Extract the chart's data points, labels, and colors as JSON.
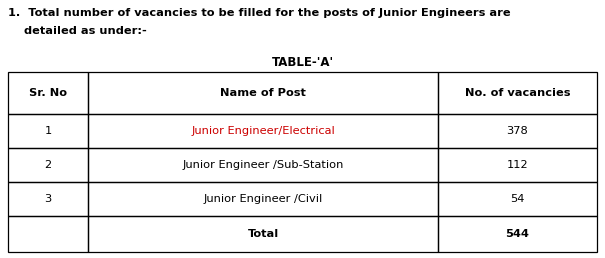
{
  "title_line1": "1.  Total number of vacancies to be filled for the posts of Junior Engineers are",
  "title_line2": "    detailed as under:-",
  "table_title": "TABLE-‘A’",
  "headers": [
    "Sr. No",
    "Name of Post",
    "No. of vacancies"
  ],
  "rows": [
    [
      "1",
      "Junior Engineer/Electrical",
      "378"
    ],
    [
      "2",
      "Junior Engineer /Sub-Station",
      "112"
    ],
    [
      "3",
      "Junior Engineer /Civil",
      "54"
    ],
    [
      "",
      "Total",
      "544"
    ]
  ],
  "col2_color_rows": [
    "#cc0000",
    "#000000",
    "#000000",
    "#000000"
  ],
  "bg_color": "#ffffff",
  "fig_width": 6.05,
  "fig_height": 2.58,
  "dpi": 100
}
